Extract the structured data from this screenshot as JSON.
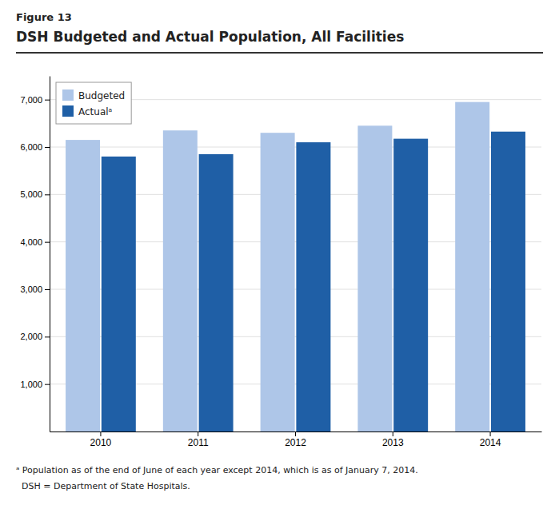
{
  "chart_data": {
    "type": "bar",
    "title": "DSH Budgeted and Actual Population, All Facilities",
    "annotations": [
      "Figure 13",
      "ᵃ Population as of the end of June of each year except 2014, which is as of January 7, 2014.",
      "  DSH = Department of State Hospitals."
    ],
    "categories": [
      "2010",
      "2011",
      "2012",
      "2013",
      "2014"
    ],
    "series": [
      {
        "name": "Budgeted",
        "color": "#aec6e8",
        "values": [
          6150,
          6350,
          6300,
          6450,
          6950
        ]
      },
      {
        "name": "Actualᵃ",
        "color": "#1f5fa6",
        "values": [
          5800,
          5850,
          6100,
          6175,
          6325
        ]
      }
    ],
    "ylim": [
      0,
      7500
    ],
    "yticks": [
      {
        "value": 1000,
        "label": "1,000"
      },
      {
        "value": 2000,
        "label": "2,000"
      },
      {
        "value": 3000,
        "label": "3,000"
      },
      {
        "value": 4000,
        "label": "4,000"
      },
      {
        "value": 5000,
        "label": "5,000"
      },
      {
        "value": 6000,
        "label": "6,000"
      },
      {
        "value": 7000,
        "label": "7,000"
      }
    ],
    "grid": true,
    "legend": "upper left"
  }
}
